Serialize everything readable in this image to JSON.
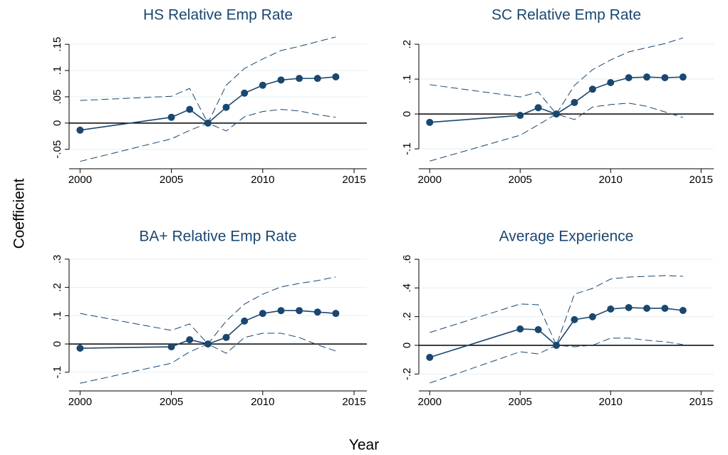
{
  "y_label": "Coefficient",
  "x_label": "Year",
  "chart_data": [
    {
      "type": "line",
      "title": "HS Relative Emp Rate",
      "x": [
        2000,
        2005,
        2006,
        2007,
        2008,
        2009,
        2010,
        2011,
        2012,
        2013,
        2014
      ],
      "series": [
        {
          "color": "#1a476f",
          "style": "solid",
          "markers": true,
          "values": [
            -0.0135,
            0.011,
            0.026,
            0,
            0.03,
            0.057,
            0.072,
            0.082,
            0.085,
            0.085,
            0.088
          ]
        },
        {
          "color": "#1a476f",
          "style": "dashed",
          "markers": false,
          "values": [
            0.043,
            0.051,
            0.066,
            0,
            0.072,
            0.104,
            0.122,
            0.138,
            0.146,
            0.155,
            0.164
          ]
        },
        {
          "color": "#1a476f",
          "style": "dashed",
          "markers": false,
          "values": [
            -0.073,
            -0.03,
            -0.014,
            0,
            -0.015,
            0.012,
            0.022,
            0.026,
            0.023,
            0.016,
            0.011
          ]
        }
      ],
      "xlim": [
        1999.4,
        2015.7
      ],
      "xticks": [
        2000,
        2005,
        2010,
        2015
      ],
      "ylim": [
        -0.087,
        0.176
      ],
      "yticks": [
        {
          "value": -0.05,
          "label": "-.05"
        },
        0,
        {
          "value": 0.05,
          "label": ".05"
        },
        {
          "value": 0.1,
          "label": ".1"
        },
        {
          "value": 0.15,
          "label": ".15"
        }
      ],
      "reference_line": 0,
      "grid": true
    },
    {
      "type": "line",
      "title": "SC Relative Emp Rate",
      "x": [
        2000,
        2005,
        2006,
        2007,
        2008,
        2009,
        2010,
        2011,
        2012,
        2013,
        2014
      ],
      "series": [
        {
          "color": "#1a476f",
          "style": "solid",
          "markers": true,
          "values": [
            -0.024,
            -0.004,
            0.018,
            0,
            0.033,
            0.071,
            0.09,
            0.104,
            0.106,
            0.104,
            0.106
          ]
        },
        {
          "color": "#1a476f",
          "style": "dashed",
          "markers": false,
          "values": [
            0.084,
            0.049,
            0.063,
            0,
            0.082,
            0.127,
            0.155,
            0.178,
            0.19,
            0.202,
            0.218
          ]
        },
        {
          "color": "#1a476f",
          "style": "dashed",
          "markers": false,
          "values": [
            -0.135,
            -0.061,
            -0.031,
            0,
            -0.016,
            0.02,
            0.027,
            0.031,
            0.022,
            0.006,
            -0.01
          ]
        }
      ],
      "xlim": [
        1999.4,
        2015.7
      ],
      "xticks": [
        2000,
        2005,
        2010,
        2015
      ],
      "ylim": [
        -0.157,
        0.239
      ],
      "yticks": [
        {
          "value": -0.1,
          "label": "-.1"
        },
        0,
        {
          "value": 0.1,
          "label": ".1"
        },
        {
          "value": 0.2,
          "label": ".2"
        }
      ],
      "reference_line": 0,
      "grid": true
    },
    {
      "type": "line",
      "title": "BA+ Relative Emp Rate",
      "x": [
        2000,
        2005,
        2006,
        2007,
        2008,
        2009,
        2010,
        2011,
        2012,
        2013,
        2014
      ],
      "series": [
        {
          "color": "#1a476f",
          "style": "solid",
          "markers": true,
          "values": [
            -0.015,
            -0.01,
            0.015,
            0,
            0.023,
            0.081,
            0.108,
            0.118,
            0.118,
            0.113,
            0.108
          ]
        },
        {
          "color": "#1a476f",
          "style": "dashed",
          "markers": false,
          "values": [
            0.108,
            0.048,
            0.071,
            0,
            0.081,
            0.141,
            0.176,
            0.202,
            0.214,
            0.224,
            0.237
          ]
        },
        {
          "color": "#1a476f",
          "style": "dashed",
          "markers": false,
          "values": [
            -0.139,
            -0.068,
            -0.028,
            0,
            -0.033,
            0.023,
            0.038,
            0.038,
            0.023,
            -0.003,
            -0.025
          ]
        }
      ],
      "xlim": [
        1999.4,
        2015.7
      ],
      "xticks": [
        2000,
        2005,
        2010,
        2015
      ],
      "ylim": [
        -0.166,
        0.33
      ],
      "yticks": [
        {
          "value": -0.1,
          "label": "-.1"
        },
        0,
        {
          "value": 0.1,
          "label": ".1"
        },
        {
          "value": 0.2,
          "label": ".2"
        },
        {
          "value": 0.3,
          "label": ".3"
        }
      ],
      "reference_line": 0,
      "grid": true
    },
    {
      "type": "line",
      "title": "Average Experience",
      "x": [
        2000,
        2005,
        2006,
        2007,
        2008,
        2009,
        2010,
        2011,
        2012,
        2013,
        2014
      ],
      "series": [
        {
          "color": "#1a476f",
          "style": "solid",
          "markers": true,
          "values": [
            -0.084,
            0.114,
            0.109,
            0,
            0.179,
            0.199,
            0.253,
            0.263,
            0.258,
            0.258,
            0.243
          ]
        },
        {
          "color": "#1a476f",
          "style": "dashed",
          "markers": false,
          "values": [
            0.089,
            0.288,
            0.283,
            0,
            0.357,
            0.397,
            0.462,
            0.476,
            0.481,
            0.486,
            0.481
          ]
        },
        {
          "color": "#1a476f",
          "style": "dashed",
          "markers": false,
          "values": [
            -0.263,
            -0.045,
            -0.06,
            0,
            -0.01,
            0,
            0.05,
            0.05,
            0.035,
            0.025,
            0.005
          ]
        }
      ],
      "xlim": [
        1999.4,
        2015.7
      ],
      "xticks": [
        2000,
        2005,
        2010,
        2015
      ],
      "ylim": [
        -0.318,
        0.66
      ],
      "yticks": [
        {
          "value": -0.2,
          "label": "-.2"
        },
        0,
        {
          "value": 0.2,
          "label": ".2"
        },
        {
          "value": 0.4,
          "label": ".4"
        },
        {
          "value": 0.6,
          "label": ".6"
        }
      ],
      "reference_line": 0,
      "grid": true
    }
  ]
}
